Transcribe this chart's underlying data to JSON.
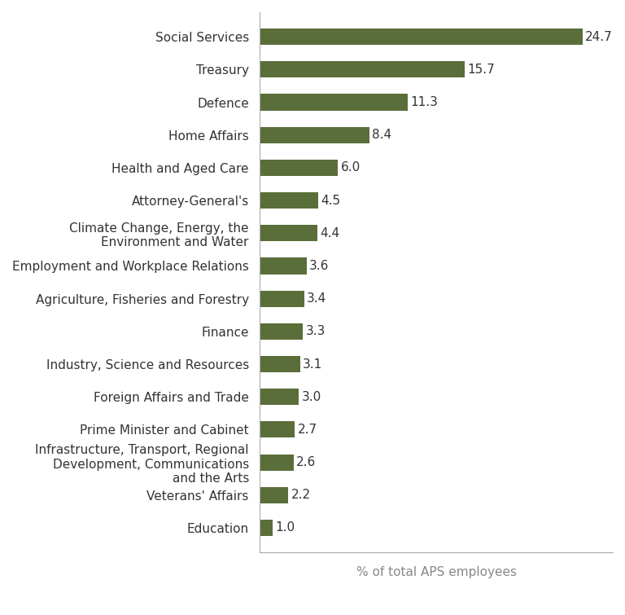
{
  "categories": [
    "Education",
    "Veterans' Affairs",
    "Infrastructure, Transport, Regional\nDevelopment, Communications\nand the Arts",
    "Prime Minister and Cabinet",
    "Foreign Affairs and Trade",
    "Industry, Science and Resources",
    "Finance",
    "Agriculture, Fisheries and Forestry",
    "Employment and Workplace Relations",
    "Climate Change, Energy, the\nEnvironment and Water",
    "Attorney-General's",
    "Health and Aged Care",
    "Home Affairs",
    "Defence",
    "Treasury",
    "Social Services"
  ],
  "values": [
    1.0,
    2.2,
    2.6,
    2.7,
    3.0,
    3.1,
    3.3,
    3.4,
    3.6,
    4.4,
    4.5,
    6.0,
    8.4,
    11.3,
    15.7,
    24.7
  ],
  "bar_color": "#5a6e3a",
  "xlabel": "% of total APS employees",
  "xlabel_fontsize": 11,
  "xlim": [
    0,
    27
  ],
  "value_label_fontsize": 11,
  "category_fontsize": 11,
  "bar_height": 0.5,
  "background_color": "#ffffff",
  "label_color": "#333333",
  "spine_color": "#aaaaaa"
}
